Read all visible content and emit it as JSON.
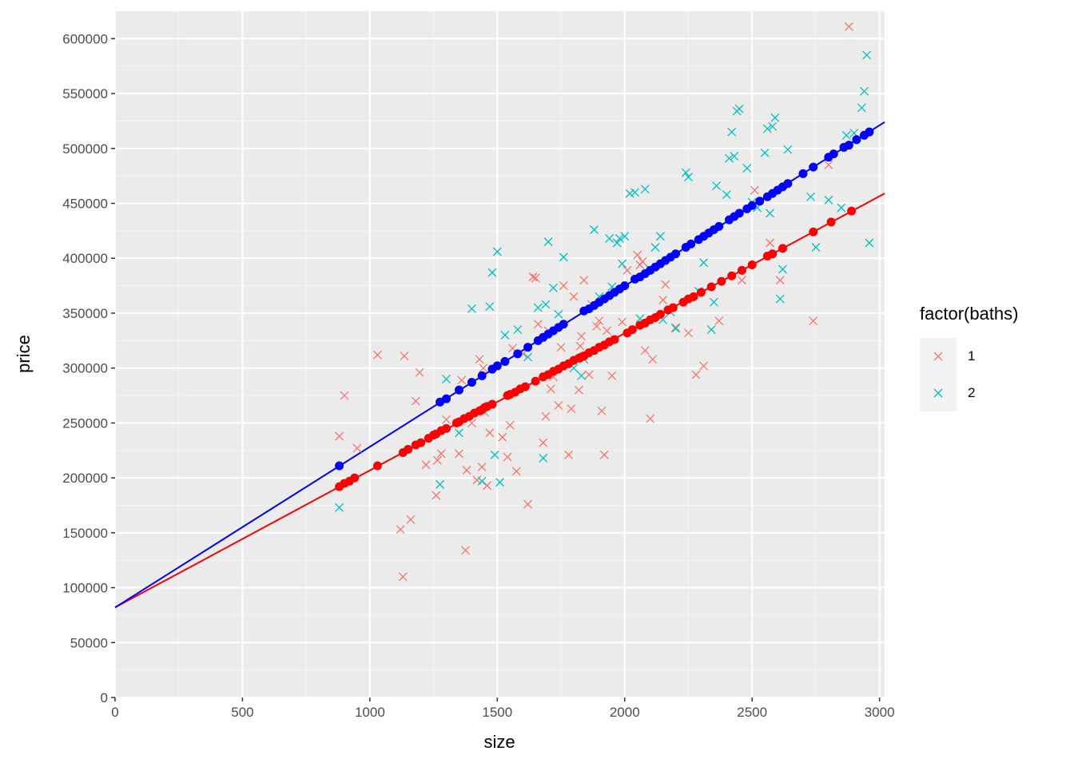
{
  "chart_data": {
    "type": "scatter",
    "xlabel": "size",
    "ylabel": "price",
    "xlim": [
      0,
      3020
    ],
    "ylim": [
      0,
      625000
    ],
    "x_ticks": [
      0,
      500,
      1000,
      1500,
      2000,
      2500,
      3000
    ],
    "y_ticks": [
      0,
      50000,
      100000,
      150000,
      200000,
      250000,
      300000,
      350000,
      400000,
      450000,
      500000,
      550000,
      600000
    ],
    "grid": true,
    "legend": {
      "title": "factor(baths)",
      "position": "right",
      "entries": [
        {
          "label": "1",
          "color": "#F8766D",
          "marker": "x"
        },
        {
          "label": "2",
          "color": "#00BFC4",
          "marker": "x"
        }
      ]
    },
    "series": [
      {
        "name": "1",
        "color": "#F8766D",
        "marker": "x",
        "x": [
          880,
          900,
          950,
          1030,
          1120,
          1130,
          1135,
          1160,
          1180,
          1195,
          1220,
          1260,
          1265,
          1280,
          1300,
          1350,
          1360,
          1375,
          1380,
          1400,
          1420,
          1430,
          1440,
          1445,
          1450,
          1460,
          1470,
          1520,
          1540,
          1550,
          1560,
          1575,
          1600,
          1620,
          1640,
          1650,
          1660,
          1680,
          1690,
          1700,
          1710,
          1720,
          1740,
          1750,
          1760,
          1780,
          1790,
          1800,
          1820,
          1825,
          1830,
          1840,
          1860,
          1870,
          1890,
          1900,
          1910,
          1920,
          1930,
          1950,
          1990,
          2010,
          2050,
          2060,
          2070,
          2080,
          2100,
          2110,
          2150,
          2160,
          2200,
          2250,
          2280,
          2310,
          2370,
          2460,
          2510,
          2570,
          2610,
          2740,
          2800,
          2880
        ],
        "y": [
          238000,
          275000,
          227000,
          312000,
          153000,
          110000,
          311000,
          162000,
          270000,
          296000,
          212000,
          184000,
          216000,
          222000,
          253000,
          222000,
          289000,
          134000,
          207000,
          250000,
          198000,
          308000,
          210000,
          300000,
          260000,
          193000,
          241000,
          237000,
          219000,
          248000,
          318000,
          206000,
          313000,
          176000,
          383000,
          382000,
          340000,
          232000,
          256000,
          334000,
          281000,
          292000,
          266000,
          319000,
          375000,
          221000,
          263000,
          365000,
          280000,
          320000,
          329000,
          380000,
          294000,
          358000,
          338000,
          343000,
          261000,
          221000,
          334000,
          293000,
          342000,
          389000,
          403000,
          394000,
          397000,
          316000,
          254000,
          308000,
          362000,
          376000,
          337000,
          332000,
          294000,
          302000,
          343000,
          380000,
          462000,
          414000,
          380000,
          343000,
          485000,
          611000
        ]
      },
      {
        "name": "2",
        "color": "#00BFC4",
        "marker": "x",
        "x": [
          880,
          1275,
          1300,
          1350,
          1400,
          1440,
          1470,
          1480,
          1490,
          1500,
          1510,
          1530,
          1580,
          1620,
          1660,
          1680,
          1690,
          1700,
          1720,
          1740,
          1760,
          1800,
          1830,
          1840,
          1880,
          1900,
          1940,
          1950,
          1970,
          1980,
          1990,
          2000,
          2020,
          2040,
          2060,
          2080,
          2100,
          2120,
          2140,
          2150,
          2180,
          2200,
          2240,
          2250,
          2290,
          2310,
          2340,
          2350,
          2360,
          2400,
          2410,
          2420,
          2430,
          2440,
          2450,
          2480,
          2500,
          2520,
          2550,
          2560,
          2570,
          2580,
          2590,
          2610,
          2620,
          2640,
          2730,
          2750,
          2800,
          2850,
          2870,
          2900,
          2930,
          2940,
          2950,
          2960
        ],
        "y": [
          173000,
          194000,
          290000,
          241000,
          354000,
          197000,
          356000,
          387000,
          221000,
          406000,
          196000,
          330000,
          335000,
          310000,
          355000,
          218000,
          358000,
          415000,
          373000,
          349000,
          401000,
          300000,
          293000,
          308000,
          426000,
          365000,
          418000,
          374000,
          414000,
          418000,
          395000,
          420000,
          459000,
          460000,
          345000,
          463000,
          390000,
          410000,
          420000,
          344000,
          351000,
          336000,
          478000,
          474000,
          370000,
          396000,
          335000,
          360000,
          466000,
          458000,
          491000,
          515000,
          493000,
          534000,
          536000,
          482000,
          451000,
          446000,
          496000,
          518000,
          441000,
          520000,
          528000,
          363000,
          390000,
          499000,
          456000,
          410000,
          453000,
          446000,
          512000,
          514000,
          537000,
          552000,
          585000,
          414000
        ]
      },
      {
        "name": "fitted 1",
        "color": "#FF0000",
        "marker": "dot",
        "line": {
          "x": [
            0,
            3020
          ],
          "y": [
            82000,
            459000
          ]
        },
        "x": [
          880,
          900,
          920,
          940,
          1030,
          1130,
          1150,
          1180,
          1200,
          1230,
          1250,
          1260,
          1280,
          1300,
          1340,
          1350,
          1370,
          1390,
          1410,
          1430,
          1440,
          1450,
          1460,
          1480,
          1540,
          1550,
          1570,
          1590,
          1610,
          1650,
          1680,
          1700,
          1720,
          1740,
          1760,
          1780,
          1800,
          1820,
          1830,
          1840,
          1860,
          1880,
          1900,
          1920,
          1940,
          1960,
          2010,
          2030,
          2060,
          2080,
          2100,
          2120,
          2140,
          2170,
          2190,
          2230,
          2250,
          2270,
          2300,
          2340,
          2380,
          2420,
          2460,
          2500,
          2560,
          2580,
          2620,
          2740,
          2810,
          2890
        ],
        "y": [
          192000,
          195000,
          197000,
          200000,
          211000,
          223000,
          226000,
          230000,
          232000,
          236000,
          239000,
          240000,
          243000,
          245000,
          250000,
          251000,
          254000,
          256000,
          259000,
          261000,
          262000,
          264000,
          265000,
          267000,
          275000,
          276000,
          278000,
          281000,
          283000,
          288000,
          292000,
          294000,
          297000,
          299000,
          302000,
          304000,
          307000,
          309000,
          310000,
          311000,
          314000,
          316000,
          319000,
          321000,
          324000,
          326000,
          332000,
          335000,
          339000,
          341000,
          344000,
          346000,
          349000,
          353000,
          355000,
          360000,
          363000,
          365000,
          369000,
          374000,
          379000,
          384000,
          389000,
          394000,
          402000,
          404000,
          409000,
          424000,
          433000,
          443000
        ]
      },
      {
        "name": "fitted 2",
        "color": "#0000FF",
        "marker": "dot",
        "line": {
          "x": [
            0,
            3020
          ],
          "y": [
            82000,
            524000
          ]
        },
        "x": [
          880,
          1275,
          1300,
          1350,
          1400,
          1440,
          1480,
          1500,
          1530,
          1580,
          1620,
          1660,
          1680,
          1700,
          1720,
          1740,
          1760,
          1840,
          1860,
          1880,
          1900,
          1920,
          1940,
          1960,
          1980,
          2000,
          2040,
          2060,
          2080,
          2100,
          2120,
          2140,
          2160,
          2180,
          2200,
          2240,
          2260,
          2290,
          2310,
          2330,
          2350,
          2370,
          2410,
          2430,
          2450,
          2480,
          2500,
          2530,
          2560,
          2580,
          2600,
          2620,
          2640,
          2700,
          2740,
          2800,
          2820,
          2860,
          2880,
          2910,
          2940,
          2960
        ],
        "y": [
          211000,
          269000,
          272000,
          280000,
          287000,
          293000,
          299000,
          302000,
          306000,
          313000,
          319000,
          325000,
          328000,
          331000,
          334000,
          337000,
          340000,
          352000,
          354000,
          357000,
          360000,
          363000,
          366000,
          369000,
          372000,
          375000,
          381000,
          383000,
          386000,
          389000,
          392000,
          395000,
          398000,
          401000,
          404000,
          410000,
          413000,
          417000,
          420000,
          423000,
          426000,
          429000,
          435000,
          438000,
          441000,
          445000,
          448000,
          452000,
          456000,
          459000,
          462000,
          465000,
          468000,
          477000,
          483000,
          492000,
          495000,
          501000,
          503000,
          508000,
          512000,
          515000
        ]
      }
    ]
  }
}
